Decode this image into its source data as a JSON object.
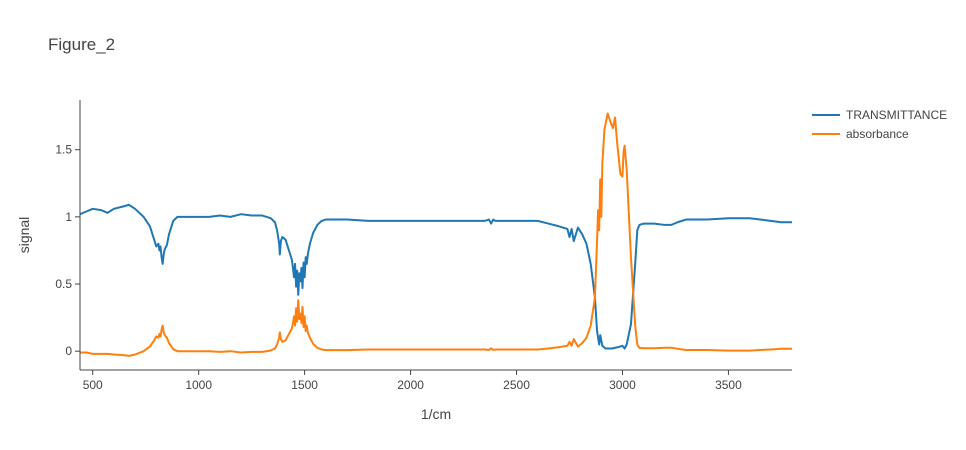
{
  "chart_data": {
    "type": "line",
    "title": "Figure_2",
    "xlabel": "1/cm",
    "ylabel": "signal",
    "xlim": [
      440,
      3800
    ],
    "ylim": [
      -0.14,
      1.87
    ],
    "xticks": [
      500,
      1000,
      1500,
      2000,
      2500,
      3000,
      3500
    ],
    "yticks": [
      0,
      0.5,
      1,
      1.5
    ],
    "ytick_labels": [
      "0",
      "0.5",
      "1",
      "1.5"
    ],
    "grid": false,
    "legend_position": "top-right",
    "series": [
      {
        "name": "TRANSMITTANCE",
        "color": "#1f77b4",
        "points": [
          [
            440,
            1.02
          ],
          [
            470,
            1.04
          ],
          [
            500,
            1.06
          ],
          [
            540,
            1.05
          ],
          [
            570,
            1.03
          ],
          [
            600,
            1.06
          ],
          [
            650,
            1.08
          ],
          [
            670,
            1.09
          ],
          [
            700,
            1.06
          ],
          [
            740,
            1.0
          ],
          [
            770,
            0.93
          ],
          [
            790,
            0.83
          ],
          [
            800,
            0.78
          ],
          [
            810,
            0.8
          ],
          [
            815,
            0.75
          ],
          [
            820,
            0.78
          ],
          [
            825,
            0.7
          ],
          [
            830,
            0.65
          ],
          [
            835,
            0.72
          ],
          [
            840,
            0.76
          ],
          [
            850,
            0.79
          ],
          [
            860,
            0.87
          ],
          [
            880,
            0.97
          ],
          [
            900,
            1.0
          ],
          [
            950,
            1.0
          ],
          [
            1000,
            1.0
          ],
          [
            1050,
            1.0
          ],
          [
            1100,
            1.01
          ],
          [
            1150,
            1.0
          ],
          [
            1200,
            1.02
          ],
          [
            1250,
            1.01
          ],
          [
            1300,
            1.01
          ],
          [
            1340,
            0.99
          ],
          [
            1360,
            0.96
          ],
          [
            1370,
            0.9
          ],
          [
            1380,
            0.8
          ],
          [
            1383,
            0.72
          ],
          [
            1388,
            0.82
          ],
          [
            1395,
            0.85
          ],
          [
            1410,
            0.83
          ],
          [
            1420,
            0.78
          ],
          [
            1430,
            0.73
          ],
          [
            1440,
            0.68
          ],
          [
            1445,
            0.62
          ],
          [
            1450,
            0.55
          ],
          [
            1455,
            0.65
          ],
          [
            1460,
            0.48
          ],
          [
            1465,
            0.6
          ],
          [
            1470,
            0.42
          ],
          [
            1475,
            0.58
          ],
          [
            1480,
            0.52
          ],
          [
            1485,
            0.62
          ],
          [
            1490,
            0.47
          ],
          [
            1495,
            0.66
          ],
          [
            1500,
            0.55
          ],
          [
            1505,
            0.7
          ],
          [
            1510,
            0.65
          ],
          [
            1515,
            0.72
          ],
          [
            1525,
            0.8
          ],
          [
            1540,
            0.88
          ],
          [
            1560,
            0.94
          ],
          [
            1580,
            0.97
          ],
          [
            1600,
            0.98
          ],
          [
            1650,
            0.98
          ],
          [
            1700,
            0.98
          ],
          [
            1800,
            0.97
          ],
          [
            1900,
            0.97
          ],
          [
            2000,
            0.97
          ],
          [
            2100,
            0.97
          ],
          [
            2200,
            0.97
          ],
          [
            2300,
            0.97
          ],
          [
            2350,
            0.97
          ],
          [
            2370,
            0.98
          ],
          [
            2380,
            0.95
          ],
          [
            2390,
            0.98
          ],
          [
            2400,
            0.97
          ],
          [
            2500,
            0.97
          ],
          [
            2600,
            0.97
          ],
          [
            2650,
            0.95
          ],
          [
            2700,
            0.93
          ],
          [
            2740,
            0.91
          ],
          [
            2750,
            0.85
          ],
          [
            2760,
            0.91
          ],
          [
            2770,
            0.82
          ],
          [
            2790,
            0.92
          ],
          [
            2810,
            0.87
          ],
          [
            2830,
            0.8
          ],
          [
            2850,
            0.65
          ],
          [
            2870,
            0.4
          ],
          [
            2880,
            0.15
          ],
          [
            2890,
            0.05
          ],
          [
            2895,
            0.12
          ],
          [
            2905,
            0.04
          ],
          [
            2920,
            0.02
          ],
          [
            2950,
            0.02
          ],
          [
            2980,
            0.03
          ],
          [
            3000,
            0.04
          ],
          [
            3010,
            0.02
          ],
          [
            3020,
            0.05
          ],
          [
            3040,
            0.2
          ],
          [
            3060,
            0.65
          ],
          [
            3070,
            0.9
          ],
          [
            3080,
            0.94
          ],
          [
            3100,
            0.95
          ],
          [
            3150,
            0.95
          ],
          [
            3200,
            0.94
          ],
          [
            3230,
            0.94
          ],
          [
            3260,
            0.96
          ],
          [
            3300,
            0.98
          ],
          [
            3400,
            0.98
          ],
          [
            3500,
            0.99
          ],
          [
            3600,
            0.99
          ],
          [
            3650,
            0.98
          ],
          [
            3700,
            0.97
          ],
          [
            3750,
            0.96
          ],
          [
            3800,
            0.96
          ]
        ]
      },
      {
        "name": "absorbance",
        "color": "#ff7f0e",
        "points": [
          [
            440,
            -0.01
          ],
          [
            470,
            -0.01
          ],
          [
            500,
            -0.02
          ],
          [
            540,
            -0.02
          ],
          [
            570,
            -0.02
          ],
          [
            600,
            -0.025
          ],
          [
            650,
            -0.03
          ],
          [
            670,
            -0.035
          ],
          [
            700,
            -0.025
          ],
          [
            740,
            0.0
          ],
          [
            770,
            0.035
          ],
          [
            790,
            0.08
          ],
          [
            800,
            0.11
          ],
          [
            810,
            0.1
          ],
          [
            815,
            0.13
          ],
          [
            820,
            0.11
          ],
          [
            825,
            0.16
          ],
          [
            830,
            0.19
          ],
          [
            835,
            0.14
          ],
          [
            840,
            0.12
          ],
          [
            850,
            0.1
          ],
          [
            860,
            0.06
          ],
          [
            880,
            0.015
          ],
          [
            900,
            0.0
          ],
          [
            950,
            0.0
          ],
          [
            1000,
            0.0
          ],
          [
            1050,
            0.0
          ],
          [
            1100,
            -0.005
          ],
          [
            1150,
            0.0
          ],
          [
            1200,
            -0.01
          ],
          [
            1250,
            -0.005
          ],
          [
            1300,
            -0.005
          ],
          [
            1340,
            0.005
          ],
          [
            1360,
            0.02
          ],
          [
            1370,
            0.05
          ],
          [
            1380,
            0.1
          ],
          [
            1383,
            0.14
          ],
          [
            1388,
            0.09
          ],
          [
            1395,
            0.07
          ],
          [
            1410,
            0.08
          ],
          [
            1420,
            0.11
          ],
          [
            1430,
            0.14
          ],
          [
            1440,
            0.17
          ],
          [
            1445,
            0.21
          ],
          [
            1450,
            0.26
          ],
          [
            1455,
            0.19
          ],
          [
            1460,
            0.32
          ],
          [
            1465,
            0.22
          ],
          [
            1470,
            0.38
          ],
          [
            1475,
            0.24
          ],
          [
            1480,
            0.28
          ],
          [
            1485,
            0.21
          ],
          [
            1490,
            0.33
          ],
          [
            1495,
            0.18
          ],
          [
            1500,
            0.26
          ],
          [
            1505,
            0.15
          ],
          [
            1510,
            0.19
          ],
          [
            1515,
            0.14
          ],
          [
            1525,
            0.1
          ],
          [
            1540,
            0.055
          ],
          [
            1560,
            0.025
          ],
          [
            1580,
            0.013
          ],
          [
            1600,
            0.008
          ],
          [
            1650,
            0.008
          ],
          [
            1700,
            0.008
          ],
          [
            1800,
            0.013
          ],
          [
            1900,
            0.013
          ],
          [
            2000,
            0.013
          ],
          [
            2100,
            0.013
          ],
          [
            2200,
            0.013
          ],
          [
            2300,
            0.013
          ],
          [
            2350,
            0.013
          ],
          [
            2370,
            0.009
          ],
          [
            2380,
            0.022
          ],
          [
            2390,
            0.009
          ],
          [
            2400,
            0.013
          ],
          [
            2500,
            0.013
          ],
          [
            2600,
            0.013
          ],
          [
            2650,
            0.02
          ],
          [
            2700,
            0.03
          ],
          [
            2740,
            0.04
          ],
          [
            2750,
            0.07
          ],
          [
            2760,
            0.04
          ],
          [
            2770,
            0.09
          ],
          [
            2790,
            0.035
          ],
          [
            2810,
            0.06
          ],
          [
            2830,
            0.1
          ],
          [
            2850,
            0.19
          ],
          [
            2870,
            0.4
          ],
          [
            2880,
            0.82
          ],
          [
            2885,
            1.05
          ],
          [
            2890,
            0.9
          ],
          [
            2895,
            1.28
          ],
          [
            2900,
            1.0
          ],
          [
            2905,
            1.4
          ],
          [
            2915,
            1.65
          ],
          [
            2930,
            1.77
          ],
          [
            2945,
            1.7
          ],
          [
            2955,
            1.66
          ],
          [
            2965,
            1.74
          ],
          [
            2975,
            1.55
          ],
          [
            2985,
            1.4
          ],
          [
            2990,
            1.32
          ],
          [
            3000,
            1.3
          ],
          [
            3005,
            1.48
          ],
          [
            3010,
            1.53
          ],
          [
            3020,
            1.35
          ],
          [
            3040,
            0.7
          ],
          [
            3060,
            0.19
          ],
          [
            3070,
            0.05
          ],
          [
            3080,
            0.025
          ],
          [
            3100,
            0.022
          ],
          [
            3150,
            0.022
          ],
          [
            3200,
            0.026
          ],
          [
            3230,
            0.026
          ],
          [
            3260,
            0.018
          ],
          [
            3300,
            0.009
          ],
          [
            3400,
            0.009
          ],
          [
            3500,
            0.004
          ],
          [
            3600,
            0.004
          ],
          [
            3650,
            0.009
          ],
          [
            3700,
            0.013
          ],
          [
            3750,
            0.018
          ],
          [
            3800,
            0.018
          ]
        ]
      }
    ]
  }
}
